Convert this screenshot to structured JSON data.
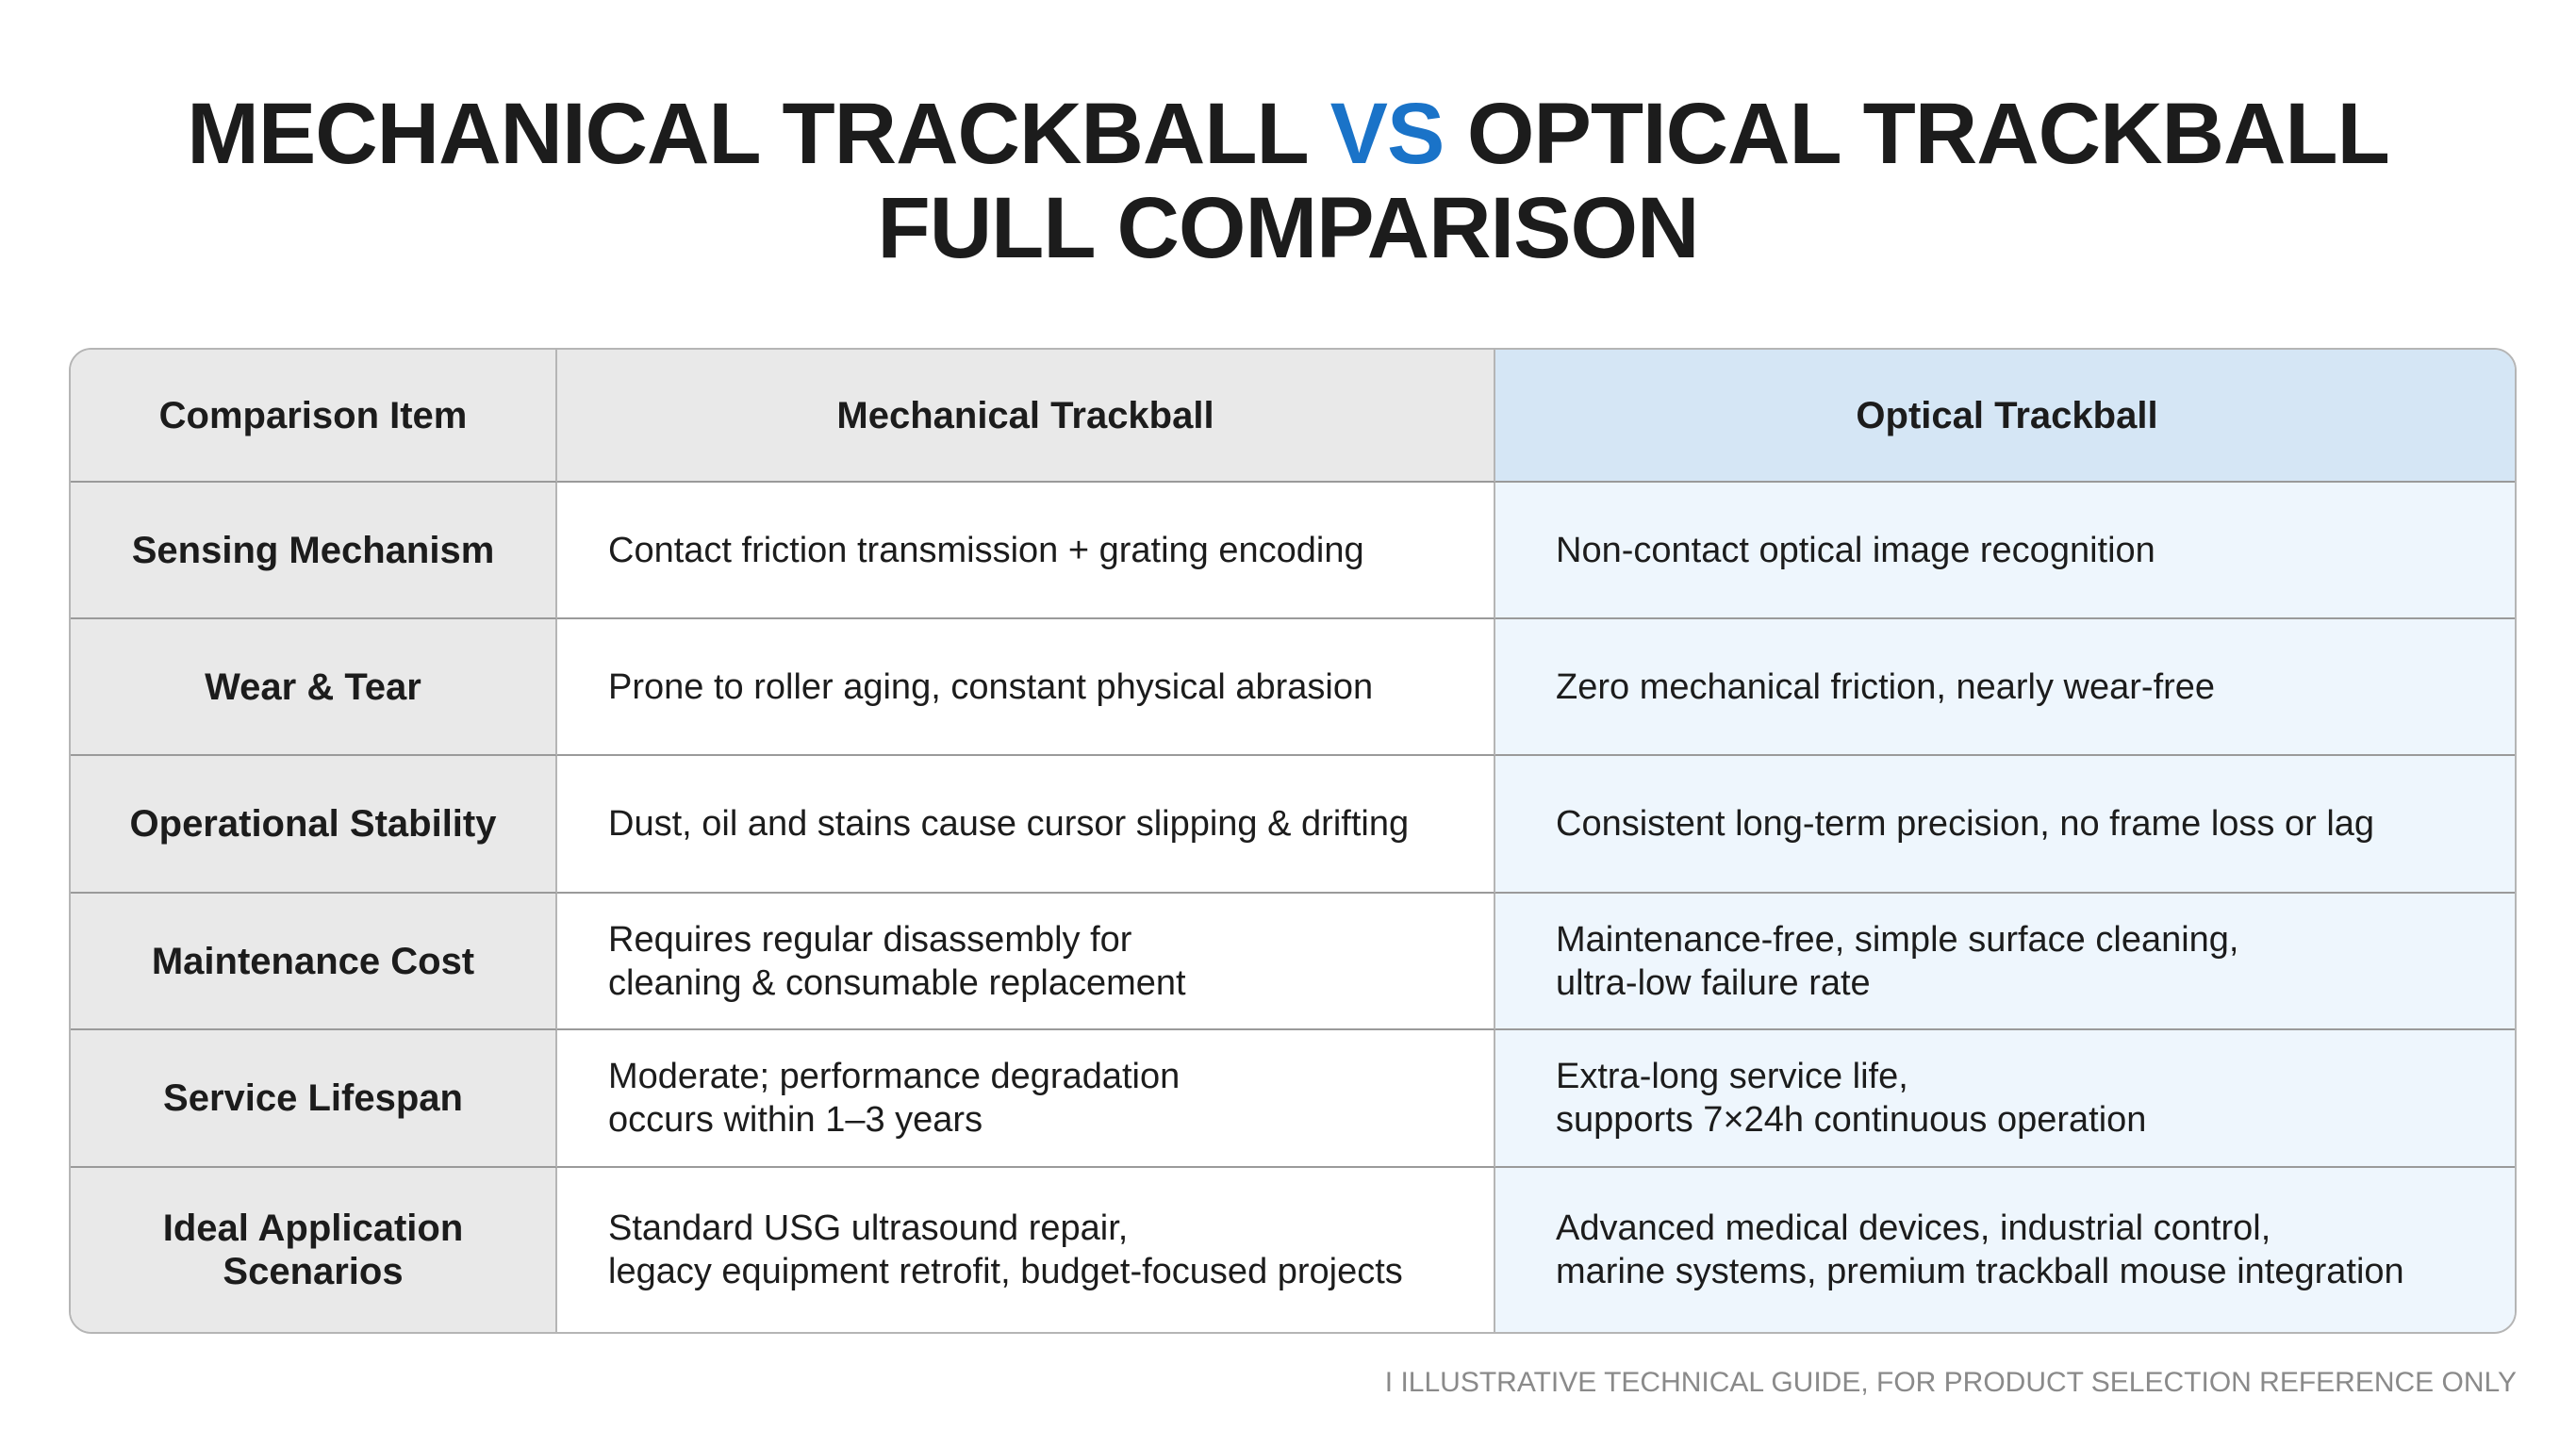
{
  "title": {
    "before": "MECHANICAL TRACKBALL",
    "highlight": "VS",
    "after": "OPTICAL TRACKBALL",
    "line2": "FULL COMPARISON"
  },
  "table": {
    "headers": [
      "Comparison Item",
      "Mechanical Trackball",
      "Optical Trackball"
    ],
    "rows": [
      [
        [
          "Sensing Mechanism"
        ],
        [
          "Contact friction transmission + grating encoding"
        ],
        [
          "Non-contact optical image recognition"
        ]
      ],
      [
        [
          "Wear & Tear"
        ],
        [
          "Prone to roller aging, constant physical abrasion"
        ],
        [
          "Zero mechanical friction, nearly wear-free"
        ]
      ],
      [
        [
          "Operational Stability"
        ],
        [
          "Dust, oil and stains cause cursor slipping & drifting"
        ],
        [
          "Consistent long-term precision, no frame loss or lag"
        ]
      ],
      [
        [
          "Maintenance Cost"
        ],
        [
          "Requires regular disassembly for",
          "cleaning & consumable replacement"
        ],
        [
          "Maintenance-free, simple surface cleaning,",
          "ultra-low failure rate"
        ]
      ],
      [
        [
          "Service Lifespan"
        ],
        [
          "Moderate; performance degradation",
          "occurs within 1–3 years"
        ],
        [
          "Extra-long service life,",
          "supports 7×24h continuous operation"
        ]
      ],
      [
        [
          "Ideal Application",
          "Scenarios"
        ],
        [
          "Standard USG ultrasound repair,",
          "legacy equipment retrofit, budget-focused projects"
        ],
        [
          "Advanced medical devices, industrial control,",
          "marine systems, premium trackball mouse integration"
        ]
      ]
    ]
  },
  "footer": "I ILLUSTRATIVE TECHNICAL GUIDE, FOR PRODUCT SELECTION REFERENCE ONLY"
}
